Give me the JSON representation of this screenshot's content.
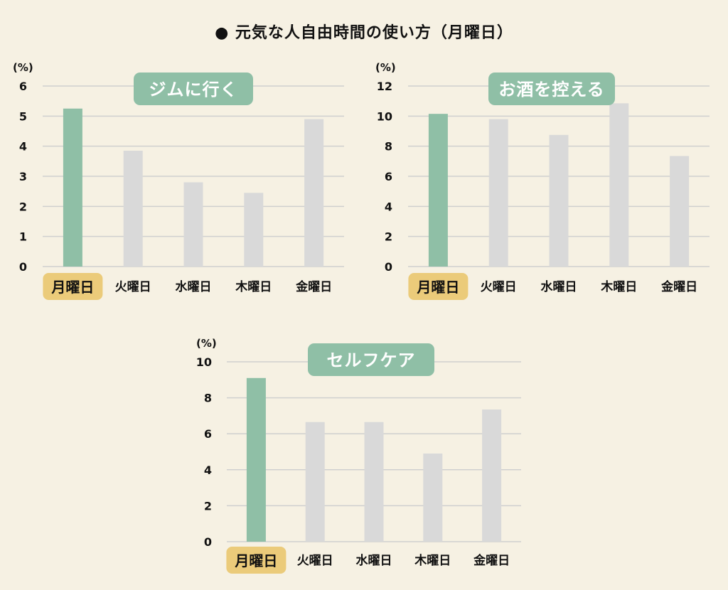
{
  "title": "● 元気な人自由時間の使い方（月曜日）",
  "colors": {
    "background": "#f6f1e3",
    "highlight_bar": "#8fbfa6",
    "normal_bar": "#d9d9d9",
    "badge": "#8fbfa6",
    "highlight_label_bg": "#ebcb7a",
    "grid": "#cfd0cf"
  },
  "chart_data": [
    {
      "type": "bar",
      "title": "ジムに行く",
      "unit_label": "(%)",
      "categories": [
        "月曜日",
        "火曜日",
        "水曜日",
        "木曜日",
        "金曜日"
      ],
      "values": [
        5.25,
        3.85,
        2.8,
        2.45,
        4.9
      ],
      "highlight_index": 0,
      "ylim": [
        0,
        6
      ],
      "yticks": [
        "0",
        "1",
        "2",
        "3",
        "4",
        "5",
        "6"
      ],
      "grid": true
    },
    {
      "type": "bar",
      "title": "お酒を控える",
      "unit_label": "(%)",
      "categories": [
        "月曜日",
        "火曜日",
        "水曜日",
        "木曜日",
        "金曜日"
      ],
      "values": [
        10.15,
        9.8,
        8.75,
        10.85,
        7.35
      ],
      "highlight_index": 0,
      "ylim": [
        0,
        12
      ],
      "yticks": [
        "0",
        "2",
        "4",
        "6",
        "8",
        "10",
        "12"
      ],
      "grid": true
    },
    {
      "type": "bar",
      "title": "セルフケア",
      "unit_label": "(%)",
      "categories": [
        "月曜日",
        "火曜日",
        "水曜日",
        "木曜日",
        "金曜日"
      ],
      "values": [
        9.1,
        6.65,
        6.65,
        4.9,
        7.35
      ],
      "highlight_index": 0,
      "ylim": [
        0,
        10
      ],
      "yticks": [
        "0",
        "2",
        "4",
        "6",
        "8",
        "10"
      ],
      "grid": true
    }
  ]
}
